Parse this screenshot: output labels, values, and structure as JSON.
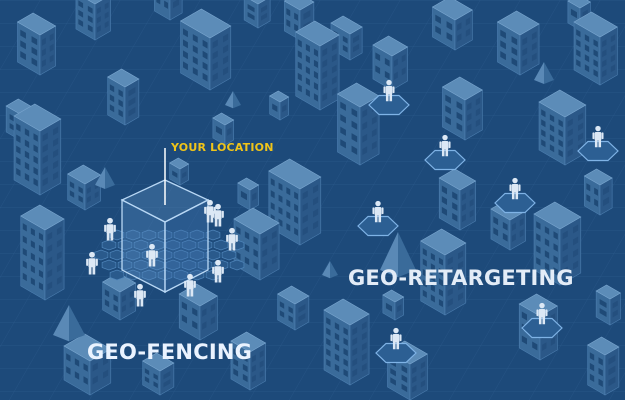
{
  "labels": {
    "your_location": "YOUR LOCATION",
    "geo_fencing": "GEO-FENCING",
    "geo_retargeting": "GEO-RETARGETING"
  },
  "colors": {
    "background": "#1d4a7a",
    "grid": "#3a6a99",
    "building_top": "#5c8cb8",
    "building_left": "#3a6b9a",
    "building_right": "#2b5888",
    "window": "#1f4a77",
    "person": "#dce8f5",
    "accent": "#f0c419",
    "hexagon_stroke": "#7fb3e6"
  },
  "icons": {
    "person": "person-icon",
    "location_cube": "location-cube-icon",
    "building": "building-icon",
    "pyramid": "pyramid-icon",
    "hexagon": "hexagon-icon"
  }
}
